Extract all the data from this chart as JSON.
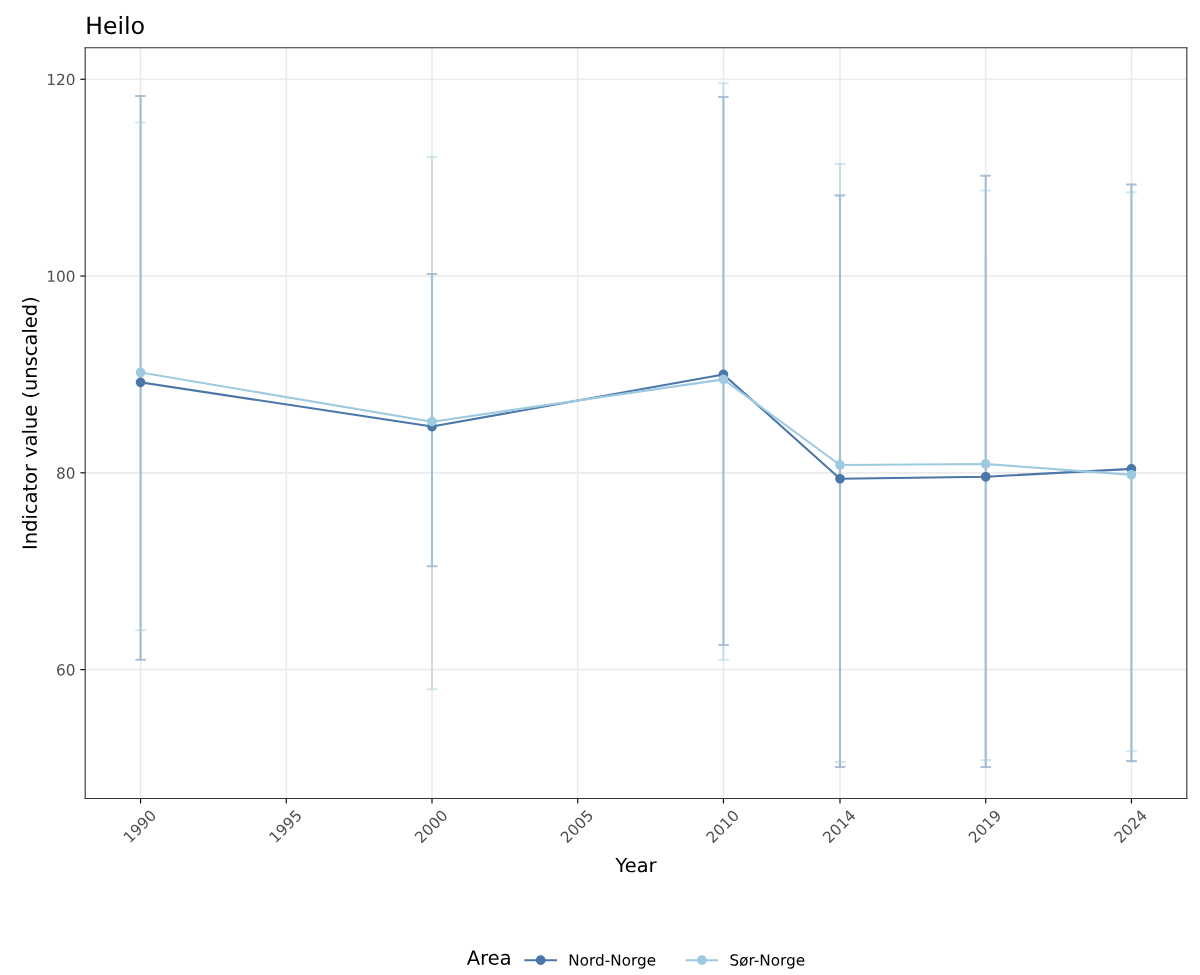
{
  "chart_data": {
    "type": "line",
    "title": "Heilo",
    "xlabel": "Year",
    "ylabel": "Indicator value (unscaled)",
    "legend_title": "Area",
    "x": [
      1990,
      2000,
      2010,
      2014,
      2019,
      2024
    ],
    "xlim": [
      1988.1,
      2025.9
    ],
    "xticks": [
      1990,
      1995,
      2000,
      2005,
      2010,
      2014,
      2019,
      2024
    ],
    "ylim": [
      46.9,
      123.2
    ],
    "yticks": [
      60,
      80,
      100,
      120
    ],
    "grid": true,
    "legend": "bottom",
    "marker": "circle",
    "line_style": "solid",
    "series": [
      {
        "name": "Nord-Norge",
        "color": "#4a76a8",
        "values": [
          89.2,
          84.7,
          90.0,
          79.4,
          79.6,
          80.4
        ],
        "errors": [
          [
            61.0,
            118.3
          ],
          [
            70.5,
            100.2
          ],
          [
            62.5,
            118.2
          ],
          [
            50.1,
            108.2
          ],
          [
            50.1,
            110.2
          ],
          [
            50.7,
            109.3
          ]
        ]
      },
      {
        "name": "Sør-Norge",
        "color": "#9ecae1",
        "values": [
          90.2,
          85.2,
          89.5,
          80.8,
          80.9,
          79.8
        ],
        "errors": [
          [
            64.0,
            115.6
          ],
          [
            58.0,
            112.1
          ],
          [
            61.0,
            119.6
          ],
          [
            50.6,
            111.4
          ],
          [
            50.8,
            108.7
          ],
          [
            51.7,
            108.5
          ]
        ]
      }
    ]
  }
}
